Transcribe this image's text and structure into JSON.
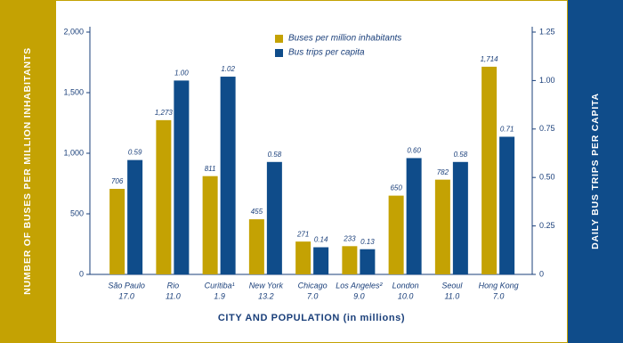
{
  "chart_data": {
    "type": "bar",
    "categories": [
      "São Paulo",
      "Rio",
      "Curitiba¹",
      "New York",
      "Chicago",
      "Los Angeles²",
      "London",
      "Seoul",
      "Hong Kong"
    ],
    "populations": [
      "17.0",
      "11.0",
      "1.9",
      "13.2",
      "7.0",
      "9.0",
      "10.0",
      "11.0",
      "7.0"
    ],
    "x_label": "CITY AND POPULATION (in millions)",
    "y_label": "NUMBER OF BUSES PER MILLION INHABITANTS",
    "y2_label": "DAILY BUS TRIPS PER CAPITA",
    "series": [
      {
        "name": "Buses per million inhabitants",
        "color": "#c4a203",
        "values": [
          706,
          1273,
          811,
          455,
          271,
          233,
          650,
          782,
          1714
        ],
        "value_labels": [
          "706",
          "1,273",
          "811",
          "455",
          "271",
          "233",
          "650",
          "782",
          "1,714"
        ]
      },
      {
        "name": "Bus trips per capita",
        "color": "#0f4c8a",
        "axis": "y2",
        "values": [
          0.59,
          1.0,
          1.02,
          0.58,
          0.14,
          0.13,
          0.6,
          0.58,
          0.71
        ],
        "value_labels": [
          "0.59",
          "1.00",
          "1.02",
          "0.58",
          "0.14",
          "0.13",
          "0.60",
          "0.58",
          "0.71"
        ]
      }
    ],
    "ylim": [
      0,
      2000
    ],
    "yticks": [
      0,
      500,
      {
        "value": 1000,
        "label": "1,000"
      },
      {
        "value": 1500,
        "label": "1,500"
      },
      {
        "value": 2000,
        "label": "2,000"
      }
    ],
    "y2lim": [
      0,
      1.25
    ],
    "y2ticks": [
      0,
      0.25,
      {
        "value": 0.5,
        "label": "0.50"
      },
      0.75,
      {
        "value": 1,
        "label": "1.00"
      },
      1.25
    ],
    "legend": "top-center"
  }
}
